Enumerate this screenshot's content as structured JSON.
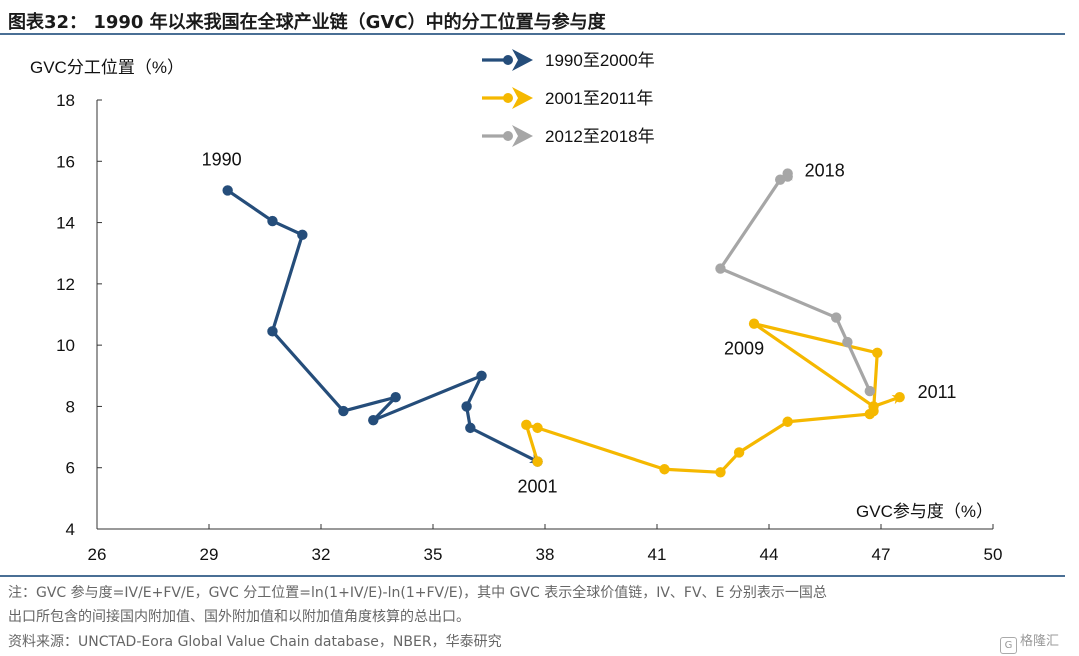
{
  "title": "图表32： 1990 年以来我国在全球产业链（GVC）中的分工位置与参与度",
  "notes": {
    "line1": "注：GVC 参与度=IV/E+FV/E，GVC 分工位置=ln(1+IV/E)-ln(1+FV/E)，其中 GVC 表示全球价值链，IV、FV、E 分别表示一国总",
    "line2": "出口所包含的间接国内附加值、国外附加值和以附加值角度核算的总出口。",
    "source": "资料来源：UNCTAD-Eora Global Value Chain database，NBER，华泰研究"
  },
  "watermark": "格隆汇",
  "chart_data": {
    "type": "line",
    "xlabel": "GVC参与度（%）",
    "ylabel": "GVC分工位置（%）",
    "xlim": [
      26,
      50
    ],
    "ylim": [
      4,
      18
    ],
    "xticks": [
      26,
      29,
      32,
      35,
      38,
      41,
      44,
      47,
      50
    ],
    "yticks": [
      4,
      6,
      8,
      10,
      12,
      14,
      16,
      18
    ],
    "legend_position": "top",
    "series": [
      {
        "name": "1990至2000年",
        "color": "#254d7a",
        "points": [
          [
            29.5,
            15.05
          ],
          [
            30.7,
            14.05
          ],
          [
            31.5,
            13.6
          ],
          [
            30.7,
            10.45
          ],
          [
            32.6,
            7.85
          ],
          [
            34.0,
            8.3
          ],
          [
            33.4,
            7.55
          ],
          [
            36.3,
            9.0
          ],
          [
            35.9,
            8.0
          ],
          [
            36.0,
            7.3
          ],
          [
            37.8,
            6.2
          ]
        ]
      },
      {
        "name": "2001至2011年",
        "color": "#f5b800",
        "points": [
          [
            37.8,
            6.2
          ],
          [
            37.5,
            7.4
          ],
          [
            37.8,
            7.3
          ],
          [
            41.2,
            5.95
          ],
          [
            42.7,
            5.85
          ],
          [
            43.2,
            6.5
          ],
          [
            44.5,
            7.5
          ],
          [
            46.7,
            7.75
          ],
          [
            46.8,
            7.85
          ],
          [
            46.9,
            9.75
          ],
          [
            43.6,
            10.7
          ],
          [
            46.8,
            8.0
          ],
          [
            47.5,
            8.3
          ]
        ]
      },
      {
        "name": "2012至2018年",
        "color": "#a6a6a6",
        "points": [
          [
            46.7,
            8.5
          ],
          [
            46.1,
            10.1
          ],
          [
            45.8,
            10.9
          ],
          [
            42.7,
            12.5
          ],
          [
            44.3,
            15.4
          ],
          [
            44.5,
            15.5
          ],
          [
            44.5,
            15.6
          ]
        ]
      }
    ],
    "annotations": [
      {
        "text": "1990",
        "x": 29.5,
        "y": 15.05
      },
      {
        "text": "2001",
        "x": 37.8,
        "y": 6.2
      },
      {
        "text": "2009",
        "x": 43.6,
        "y": 10.7
      },
      {
        "text": "2011",
        "x": 47.5,
        "y": 8.3
      },
      {
        "text": "2018",
        "x": 44.5,
        "y": 15.6
      }
    ]
  }
}
